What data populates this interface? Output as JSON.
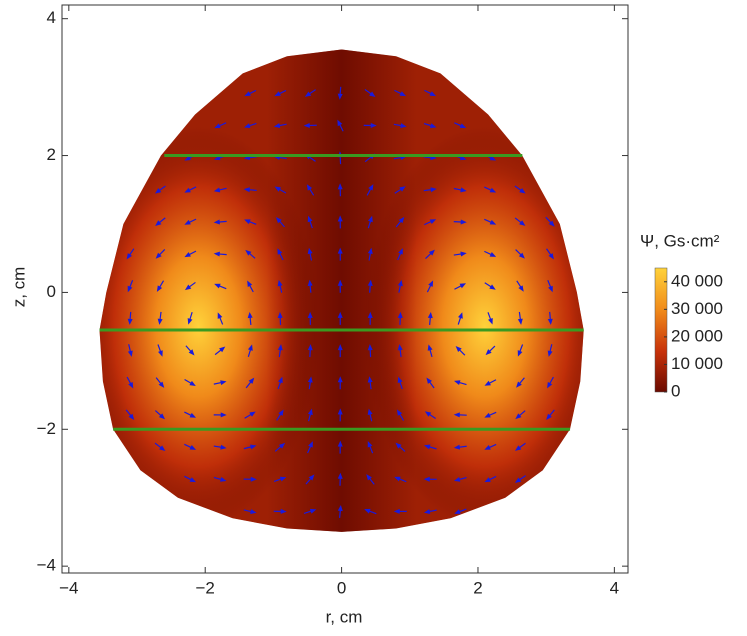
{
  "chart_data": {
    "type": "heatmap",
    "x_label": "r, cm",
    "y_label": "z, cm",
    "xlim": [
      -4.1,
      4.2
    ],
    "ylim": [
      -4.1,
      4.2
    ],
    "xticks": [
      {
        "value": -4,
        "label": "−4"
      },
      {
        "value": -2,
        "label": "−2"
      },
      0,
      2,
      4
    ],
    "yticks": [
      {
        "value": -4,
        "label": "−4"
      },
      {
        "value": -2,
        "label": "−2"
      },
      0,
      2,
      4
    ],
    "colorbar": {
      "title": "Ψ, Gs·cm²",
      "clim": [
        0,
        45000
      ],
      "ticks": [
        0,
        {
          "value": 10000,
          "label": "10 000"
        },
        {
          "value": 20000,
          "label": "20 000"
        },
        {
          "value": 30000,
          "label": "30 000"
        },
        {
          "value": 40000,
          "label": "40 000"
        }
      ],
      "colors": [
        "#6a0a00",
        "#c8320a",
        "#f08a1a",
        "#ffd23a"
      ]
    },
    "lines": {
      "color": "#3a9a20",
      "series": [
        {
          "z": 2,
          "r": [
            -2.6,
            2.65
          ]
        },
        {
          "z": -0.55,
          "r": [
            -3.55,
            3.55
          ]
        },
        {
          "z": -2,
          "r": [
            -3.35,
            3.35
          ]
        }
      ]
    },
    "arrow_color": "#1a1adc"
  }
}
